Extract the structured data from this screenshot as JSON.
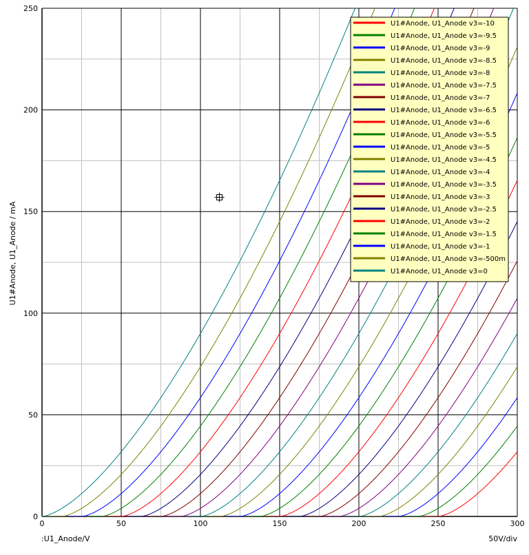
{
  "chart_data": {
    "type": "line",
    "title": "",
    "xlabel": ":U1_Anode/V",
    "ylabel": "U1#Anode, U1_Anode / mA",
    "xdiv_label": "50V/div",
    "xlim": [
      0,
      300
    ],
    "ylim": [
      0,
      250
    ],
    "x_major_ticks": [
      0,
      50,
      100,
      150,
      200,
      250,
      300
    ],
    "x_minor_ticks": [
      25,
      75,
      125,
      175,
      225,
      275
    ],
    "y_major_ticks": [
      0,
      50,
      100,
      150,
      200,
      250
    ],
    "y_minor_ticks": [
      25,
      75,
      125,
      175,
      225
    ],
    "grid": true,
    "legend_position": "top-right",
    "colors": [
      "#ff0000",
      "#008000",
      "#0000ff",
      "#808000",
      "#008080",
      "#800080",
      "#800000",
      "#000080"
    ],
    "curve_shape": {
      "note": "I = k * (Va - V0)^1.5 for Va > V0",
      "k": 0.09,
      "v0_per_grid_volt": 25
    },
    "series": [
      {
        "name": "U1#Anode, U1_Anode v3=-10",
        "v3": -10,
        "x_start": 250
      },
      {
        "name": "U1#Anode, U1_Anode v3=-9.5",
        "v3": -9.5,
        "x_start": 237.5
      },
      {
        "name": "U1#Anode, U1_Anode v3=-9",
        "v3": -9,
        "x_start": 225
      },
      {
        "name": "U1#Anode, U1_Anode v3=-8.5",
        "v3": -8.5,
        "x_start": 212.5
      },
      {
        "name": "U1#Anode, U1_Anode v3=-8",
        "v3": -8,
        "x_start": 200
      },
      {
        "name": "U1#Anode, U1_Anode v3=-7.5",
        "v3": -7.5,
        "x_start": 187.5
      },
      {
        "name": "U1#Anode, U1_Anode v3=-7",
        "v3": -7,
        "x_start": 175
      },
      {
        "name": "U1#Anode, U1_Anode v3=-6.5",
        "v3": -6.5,
        "x_start": 162.5
      },
      {
        "name": "U1#Anode, U1_Anode v3=-6",
        "v3": -6,
        "x_start": 150
      },
      {
        "name": "U1#Anode, U1_Anode v3=-5.5",
        "v3": -5.5,
        "x_start": 137.5
      },
      {
        "name": "U1#Anode, U1_Anode v3=-5",
        "v3": -5,
        "x_start": 125
      },
      {
        "name": "U1#Anode, U1_Anode v3=-4.5",
        "v3": -4.5,
        "x_start": 112.5
      },
      {
        "name": "U1#Anode, U1_Anode v3=-4",
        "v3": -4,
        "x_start": 100
      },
      {
        "name": "U1#Anode, U1_Anode v3=-3.5",
        "v3": -3.5,
        "x_start": 87.5
      },
      {
        "name": "U1#Anode, U1_Anode v3=-3",
        "v3": -3,
        "x_start": 75
      },
      {
        "name": "U1#Anode, U1_Anode v3=-2.5",
        "v3": -2.5,
        "x_start": 62.5
      },
      {
        "name": "U1#Anode, U1_Anode v3=-2",
        "v3": -2,
        "x_start": 50
      },
      {
        "name": "U1#Anode, U1_Anode v3=-1.5",
        "v3": -1.5,
        "x_start": 37.5
      },
      {
        "name": "U1#Anode, U1_Anode v3=-1",
        "v3": -1,
        "x_start": 25
      },
      {
        "name": "U1#Anode, U1_Anode v3=-500m",
        "v3": -0.5,
        "x_start": 12.5
      },
      {
        "name": "U1#Anode, U1_Anode v3=0",
        "v3": 0,
        "x_start": 0
      }
    ],
    "cursor": {
      "x": 112,
      "y": 157
    }
  }
}
